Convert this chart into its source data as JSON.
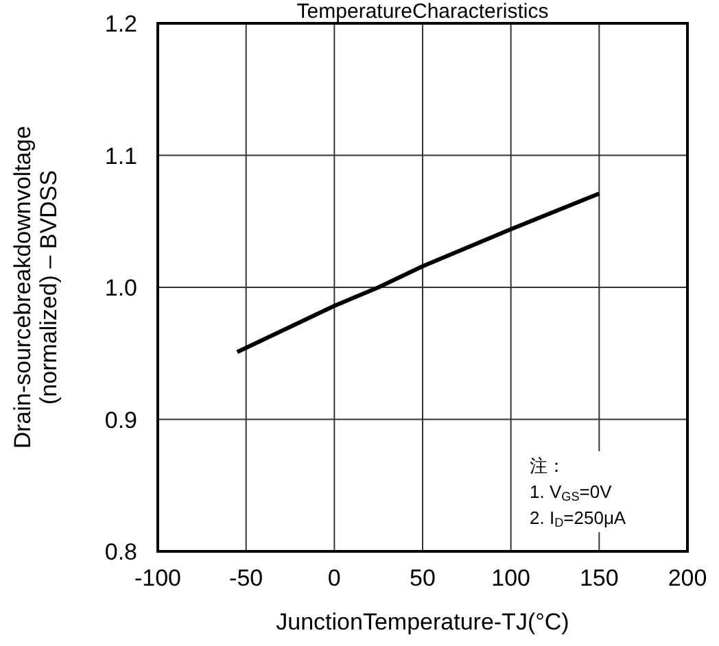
{
  "chart_data": {
    "type": "line",
    "title": "TemperatureCharacteristics",
    "xlabel": "JunctionTemperature-TJ(°C)",
    "ylabel": "Drain-sourcebreakdownvoltage\n(normalized) – BVDSS",
    "x": [
      -55,
      0,
      25,
      50,
      100,
      150
    ],
    "series": [
      {
        "color": "#000000",
        "values": [
          0.951,
          0.986,
          1.0,
          1.016,
          1.044,
          1.071
        ]
      }
    ],
    "xlim": [
      -100,
      200
    ],
    "xticks": [
      -100,
      -50,
      0,
      50,
      100,
      150,
      200
    ],
    "ylim": [
      0.8,
      1.2
    ],
    "yticks": [
      {
        "value": 0.8,
        "label": "0.8"
      },
      {
        "value": 0.9,
        "label": "0.9"
      },
      {
        "value": 1.0,
        "label": "1.0"
      },
      {
        "value": 1.1,
        "label": "1.1"
      },
      {
        "value": 1.2,
        "label": "1.2"
      }
    ],
    "grid": true,
    "marker": "none",
    "line_style": "solid",
    "annotations": [
      "注：",
      "1. V$_{GS}$=0V",
      "2. I$_{D}$=250μA"
    ]
  }
}
